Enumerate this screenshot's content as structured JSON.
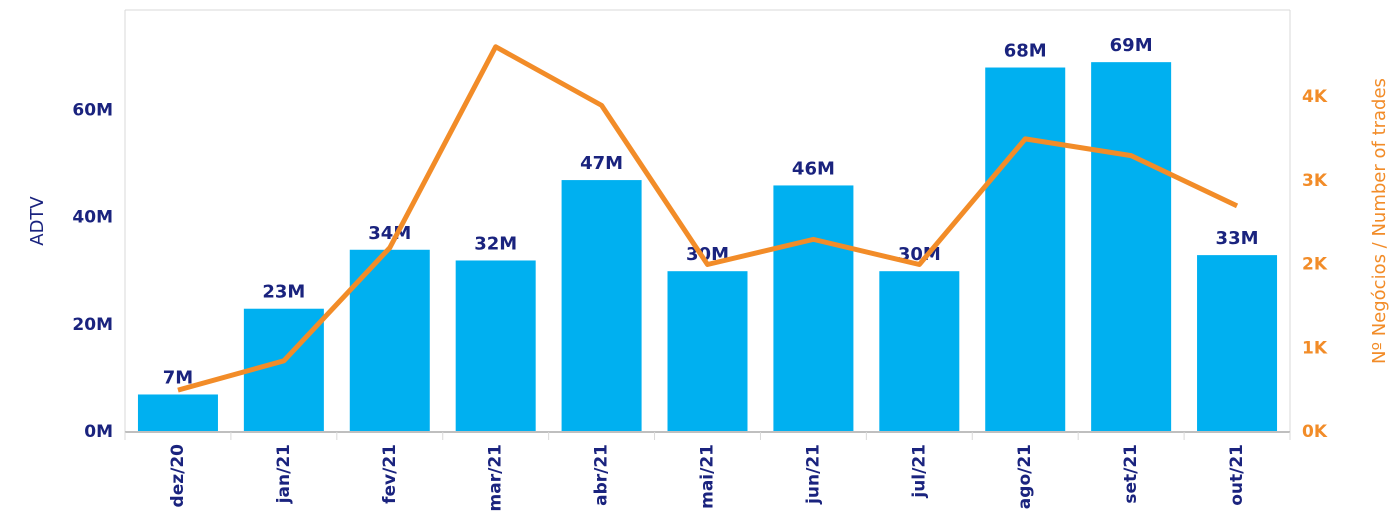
{
  "chart_data": {
    "type": "bar-line",
    "categories": [
      "dez/20",
      "jan/21",
      "fev/21",
      "mar/21",
      "abr/21",
      "mai/21",
      "jun/21",
      "jul/21",
      "ago/21",
      "set/21",
      "out/21"
    ],
    "series": [
      {
        "name": "ADTV",
        "type": "bar",
        "color": "#00b0f0",
        "values": [
          7,
          23,
          34,
          32,
          47,
          30,
          46,
          30,
          68,
          69,
          33
        ],
        "value_labels": [
          "7M",
          "23M",
          "34M",
          "32M",
          "47M",
          "30M",
          "46M",
          "30M",
          "68M",
          "69M",
          "33M"
        ]
      },
      {
        "name": "Nº Negócios / Number of trades",
        "type": "line",
        "axis": "y2",
        "color": "#f28c28",
        "values": [
          500,
          850,
          2200,
          4600,
          3900,
          2000,
          2300,
          2000,
          3500,
          3300,
          2700
        ]
      }
    ],
    "ylabel": "ADTV",
    "y2label": "Nº Negócios / Number of trades",
    "ylim": [
      0,
      75
    ],
    "yticks": [
      {
        "value": 0,
        "label": "0M"
      },
      {
        "value": 20,
        "label": "20M"
      },
      {
        "value": 40,
        "label": "40M"
      },
      {
        "value": 60,
        "label": "60M"
      }
    ],
    "y2lim": [
      0,
      4800
    ],
    "y2ticks": [
      {
        "value": 0,
        "label": "0K"
      },
      {
        "value": 1000,
        "label": "1K"
      },
      {
        "value": 2000,
        "label": "2K"
      },
      {
        "value": 3000,
        "label": "3K"
      },
      {
        "value": 4000,
        "label": "4K"
      }
    ]
  }
}
